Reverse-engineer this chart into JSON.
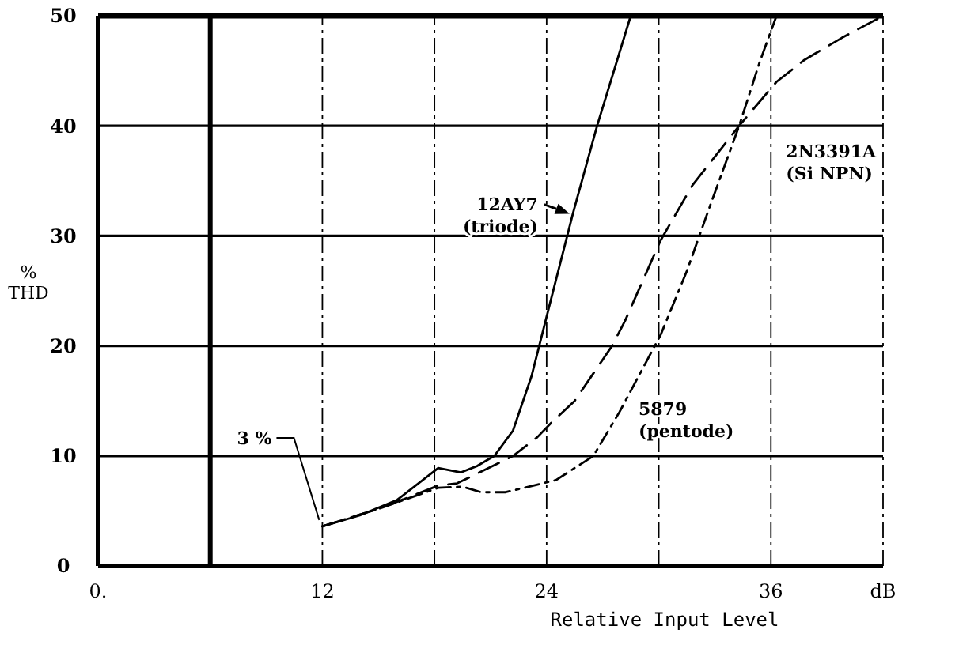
{
  "chart_data": {
    "type": "line",
    "xlabel": "Relative Input Level",
    "ylabel": "% THD",
    "xlim": [
      0,
      42
    ],
    "ylim": [
      0,
      50
    ],
    "xticks": [
      {
        "value": 0,
        "label": "0."
      },
      {
        "value": 6,
        "label": null
      },
      12,
      {
        "value": 18,
        "label": null
      },
      24,
      {
        "value": 30,
        "label": null
      },
      36,
      {
        "value": 42,
        "label": "dB"
      }
    ],
    "yticks": [
      0,
      10,
      20,
      30,
      40,
      50
    ],
    "grid": true,
    "series": [
      {
        "name": "12AY7 (triode)",
        "color": "#000000",
        "line_style": "solid",
        "x": [
          12,
          14,
          16,
          18.2,
          19.4,
          20.3,
          21.2,
          22.2,
          23.2,
          24.2,
          25.4,
          26.7,
          28.5
        ],
        "values": [
          3.6,
          4.6,
          6,
          8.9,
          8.5,
          9.1,
          10,
          12.3,
          17.3,
          24,
          32,
          40,
          50
        ]
      },
      {
        "name": "2N3391A (Si NPN)",
        "color": "#000000",
        "line_style": "dashed",
        "x": [
          12,
          15.2,
          18.2,
          19.2,
          20.9,
          22.2,
          23.5,
          24.3,
          25.5,
          27.5,
          28.2,
          30.1,
          31.8,
          34.3,
          36.3,
          37.8,
          39.8,
          42
        ],
        "values": [
          3.6,
          5.3,
          7.3,
          7.5,
          8.9,
          10,
          11.7,
          13.1,
          15,
          20,
          22.3,
          29.6,
          34.6,
          40,
          44,
          46,
          48,
          50
        ]
      },
      {
        "name": "5879 (pentode)",
        "color": "#000000",
        "line_style": "dotted",
        "x": [
          12,
          15.2,
          18.2,
          19.5,
          20.5,
          21.8,
          24.5,
          26.5,
          27.9,
          30.1,
          31.5,
          32.8,
          34.3,
          35.4,
          36.3
        ],
        "values": [
          3.6,
          5.3,
          7.1,
          7.2,
          6.7,
          6.7,
          7.8,
          10,
          14,
          21,
          26.8,
          33,
          40,
          45.8,
          50
        ]
      }
    ],
    "ref_lines": [
      {
        "axis": "x",
        "value": 6
      }
    ],
    "annotations": [
      {
        "text": "3 %",
        "x": 12,
        "y": 3.6
      }
    ]
  }
}
